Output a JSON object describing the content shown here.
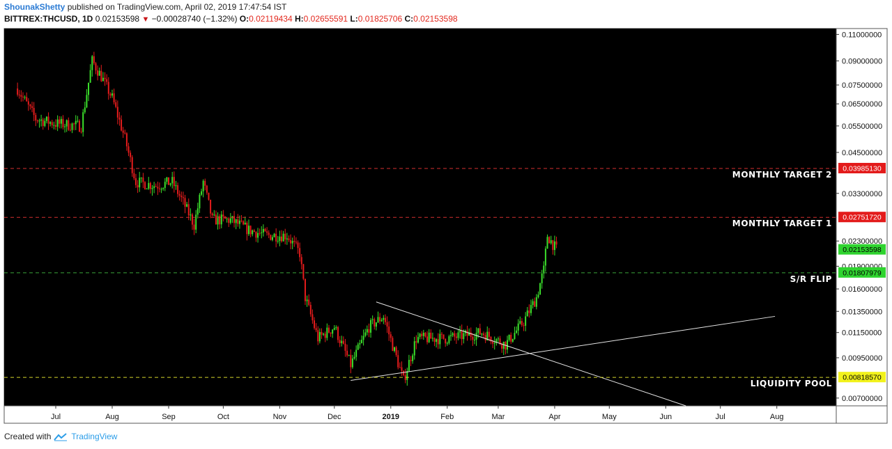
{
  "header": {
    "author": "ShounakShetty",
    "published": "published on TradingView.com, April 02, 2019 17:47:54 IST",
    "symbol": "BITTREX:THCUSD, 1D",
    "last": "0.02153598",
    "change_icon": "down-triangle-icon",
    "change": "−0.00028740 (−1.32%)",
    "open_label": "O:",
    "open": "0.02119434",
    "high_label": "H:",
    "high": "0.02655591",
    "low_label": "L:",
    "low": "0.01825706",
    "close_label": "C:",
    "close": "0.02153598"
  },
  "footer": {
    "created_with": "Created with",
    "brand": "TradingView"
  },
  "colors": {
    "up": "#3be02b",
    "down": "#e51c1c",
    "background": "#000000",
    "target_line": "#d32f2f",
    "flip_line": "#3aa53a",
    "liquidity_line": "#d6d62a"
  },
  "chart_data": {
    "type": "candlestick",
    "scale": "log",
    "ylim": [
      0.0066,
      0.115
    ],
    "x_ticks": [
      "Jul",
      "Aug",
      "Sep",
      "Oct",
      "Nov",
      "Dec",
      "2019",
      "Feb",
      "Mar",
      "Apr",
      "May",
      "Jun",
      "Jul",
      "Aug"
    ],
    "y_ticks": [
      "0.11000000",
      "0.09000000",
      "0.07500000",
      "0.06500000",
      "0.05500000",
      "0.04500000",
      "0.03300000",
      "0.02300000",
      "0.01900000",
      "0.01600000",
      "0.01350000",
      "0.01150000",
      "0.00950000",
      "0.00700000"
    ],
    "close_path": [
      [
        "2018-06-10",
        0.073
      ],
      [
        "2018-06-20",
        0.058
      ],
      [
        "2018-07-01",
        0.056
      ],
      [
        "2018-07-15",
        0.055
      ],
      [
        "2018-07-21",
        0.09
      ],
      [
        "2018-07-26",
        0.08
      ],
      [
        "2018-08-01",
        0.068
      ],
      [
        "2018-08-08",
        0.05
      ],
      [
        "2018-08-14",
        0.036
      ],
      [
        "2018-08-25",
        0.035
      ],
      [
        "2018-09-03",
        0.036
      ],
      [
        "2018-09-10",
        0.03
      ],
      [
        "2018-09-15",
        0.026
      ],
      [
        "2018-09-20",
        0.036
      ],
      [
        "2018-09-25",
        0.027
      ],
      [
        "2018-10-05",
        0.027
      ],
      [
        "2018-10-15",
        0.025
      ],
      [
        "2018-10-25",
        0.024
      ],
      [
        "2018-11-05",
        0.024
      ],
      [
        "2018-11-12",
        0.021
      ],
      [
        "2018-11-15",
        0.015
      ],
      [
        "2018-11-22",
        0.011
      ],
      [
        "2018-12-01",
        0.012
      ],
      [
        "2018-12-10",
        0.009
      ],
      [
        "2018-12-20",
        0.012
      ],
      [
        "2018-12-28",
        0.013
      ],
      [
        "2019-01-08",
        0.008
      ],
      [
        "2019-01-15",
        0.011
      ],
      [
        "2019-02-01",
        0.011
      ],
      [
        "2019-02-20",
        0.0115
      ],
      [
        "2019-03-05",
        0.0105
      ],
      [
        "2019-03-15",
        0.0125
      ],
      [
        "2019-03-22",
        0.015
      ],
      [
        "2019-03-26",
        0.0185
      ],
      [
        "2019-03-28",
        0.024
      ],
      [
        "2019-04-02",
        0.02153598
      ]
    ],
    "levels": [
      {
        "label": "MONTHLY TARGET 2",
        "value": 0.0398513,
        "badge": "0.03985130",
        "style": "target"
      },
      {
        "label": "MONTHLY TARGET 1",
        "value": 0.0275172,
        "badge": "0.02751720",
        "style": "target"
      },
      {
        "label": "",
        "value": 0.02153598,
        "badge": "0.02153598",
        "style": "last"
      },
      {
        "label": "S/R FLIP",
        "value": 0.01807979,
        "badge": "0.01807979",
        "style": "flip"
      },
      {
        "label": "LIQUIDITY POOL",
        "value": 0.0081857,
        "badge": "0.00818570",
        "style": "liquidity"
      }
    ],
    "trendlines": [
      {
        "from": [
          "2018-12-24",
          0.0145
        ],
        "to": [
          "2019-03-10",
          0.0102
        ],
        "extend": true
      },
      {
        "from": [
          "2018-12-10",
          0.008
        ],
        "to": [
          "2019-07-31",
          0.013
        ],
        "extend": false
      }
    ]
  }
}
